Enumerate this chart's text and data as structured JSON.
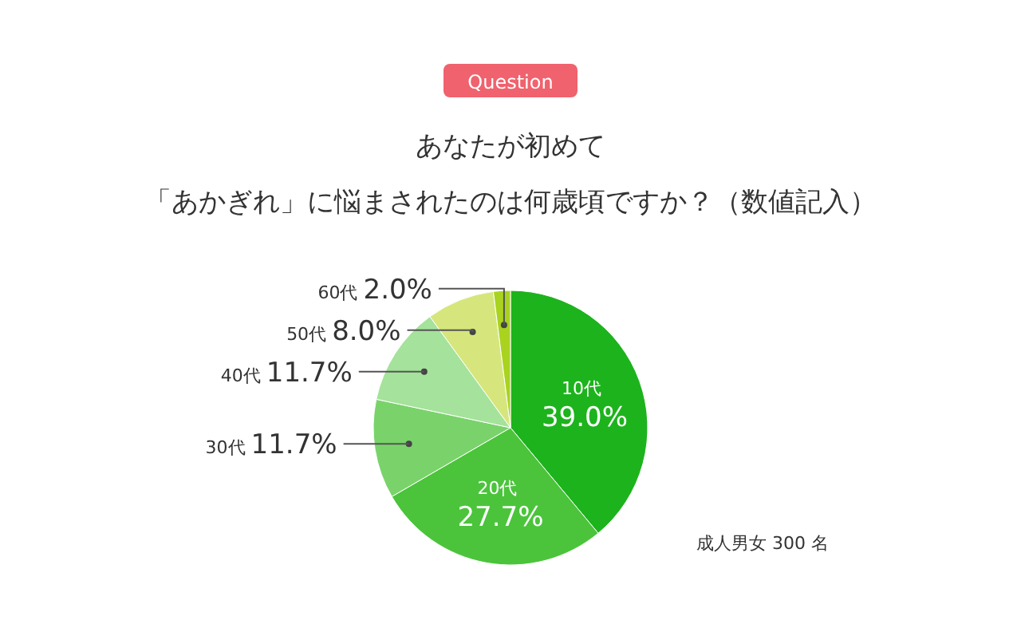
{
  "chart_data": {
    "type": "pie",
    "title": "あなたが初めて",
    "subtitle": "「あかぎれ」に悩まされたのは何歳頃ですか？（数値記入）",
    "annotations": [
      "Question",
      "成人男女 300 名"
    ],
    "categories": [
      "10代",
      "20代",
      "30代",
      "40代",
      "50代",
      "60代"
    ],
    "values": [
      39.0,
      27.7,
      11.7,
      11.7,
      8.0,
      2.0
    ],
    "value_labels": [
      "39.0%",
      "27.7%",
      "11.7%",
      "11.7%",
      "8.0%",
      "2.0%"
    ],
    "colors": [
      "#1db31d",
      "#4bc43b",
      "#79d36a",
      "#a5e29b",
      "#d6e67c",
      "#a9d31f"
    ],
    "legend": false
  }
}
